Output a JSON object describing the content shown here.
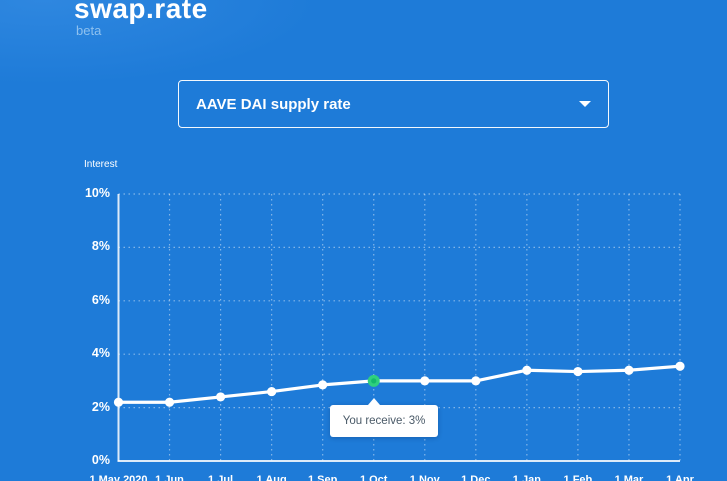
{
  "brand": {
    "logo": "swap.rate",
    "beta": "beta"
  },
  "dropdown": {
    "value": "AAVE DAI supply rate"
  },
  "colors": {
    "background": "#1e7bd8",
    "line": "#ffffff",
    "marker": "#ffffff",
    "highlight_point": "#2fd07e",
    "highlight_point_inner": "#14b96c",
    "grid": "rgba(255,255,255,0.45)",
    "axis": "rgba(255,255,255,0.85)",
    "tooltip_bg": "#ffffff",
    "tooltip_text": "#4a5a68",
    "beta_text": "#8ec1ef"
  },
  "chart_data": {
    "type": "line",
    "title": "AAVE DAI supply rate",
    "ylabel": "Interest",
    "xlabel": "",
    "x": [
      "1 May 2020",
      "1 Jun",
      "1 Jul",
      "1 Aug",
      "1 Sep",
      "1 Oct",
      "1 Nov",
      "1 Dec",
      "1 Jan",
      "1 Feb",
      "1 Mar",
      "1 Apr"
    ],
    "series": [
      {
        "name": "AAVE DAI supply rate",
        "values": [
          2.2,
          2.2,
          2.4,
          2.6,
          2.85,
          3.0,
          3.0,
          3.0,
          3.4,
          3.35,
          3.4,
          3.55
        ]
      }
    ],
    "ylim": [
      0,
      10
    ],
    "yticks": [
      0,
      2,
      4,
      6,
      8,
      10
    ],
    "ytick_labels": [
      "0%",
      "2%",
      "4%",
      "6%",
      "8%",
      "10%"
    ],
    "grid": true,
    "legend_position": "none",
    "highlight": {
      "index": 5,
      "tooltip": "You receive: 3%"
    }
  }
}
